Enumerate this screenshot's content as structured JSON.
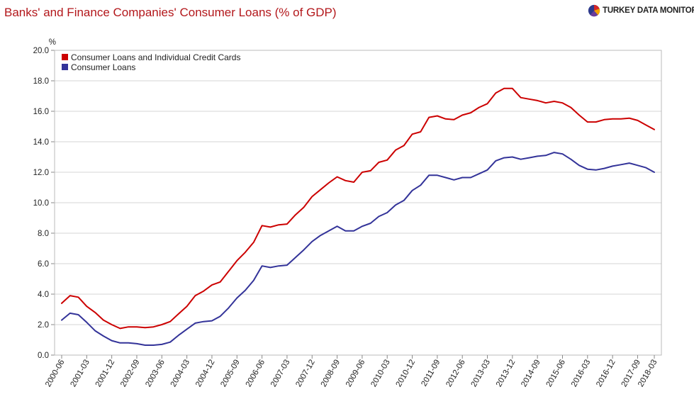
{
  "header": {
    "title": "Banks' and Finance Companies' Consumer Loans (% of GDP)",
    "brand": "TURKEY DATA MONITOR",
    "brand_logo_icon": "pie-logo-icon"
  },
  "chart_data": {
    "type": "line",
    "title": "Banks' and Finance Companies' Consumer Loans (% of GDP)",
    "ylabel": "%",
    "xlabel": "",
    "ylim": [
      0,
      20
    ],
    "yticks": [
      "0.0",
      "2.0",
      "4.0",
      "6.0",
      "8.0",
      "10.0",
      "12.0",
      "14.0",
      "16.0",
      "18.0",
      "20.0"
    ],
    "grid": "horizontal",
    "legend_position": "top-left",
    "x": [
      "2000-06",
      "2000-09",
      "2000-12",
      "2001-03",
      "2001-06",
      "2001-09",
      "2001-12",
      "2002-03",
      "2002-06",
      "2002-09",
      "2002-12",
      "2003-03",
      "2003-06",
      "2003-09",
      "2003-12",
      "2004-03",
      "2004-06",
      "2004-09",
      "2004-12",
      "2005-03",
      "2005-06",
      "2005-09",
      "2005-12",
      "2006-03",
      "2006-06",
      "2006-09",
      "2006-12",
      "2007-03",
      "2007-06",
      "2007-09",
      "2007-12",
      "2008-03",
      "2008-06",
      "2008-09",
      "2008-12",
      "2009-03",
      "2009-06",
      "2009-09",
      "2009-12",
      "2010-03",
      "2010-06",
      "2010-09",
      "2010-12",
      "2011-03",
      "2011-06",
      "2011-09",
      "2011-12",
      "2012-03",
      "2012-06",
      "2012-09",
      "2012-12",
      "2013-03",
      "2013-06",
      "2013-09",
      "2013-12",
      "2014-03",
      "2014-06",
      "2014-09",
      "2014-12",
      "2015-03",
      "2015-06",
      "2015-09",
      "2015-12",
      "2016-03",
      "2016-06",
      "2016-09",
      "2016-12",
      "2017-03",
      "2017-06",
      "2017-09",
      "2017-12",
      "2018-03"
    ],
    "xtick_labels": [
      "2000-06",
      "2001-03",
      "2001-12",
      "2002-09",
      "2003-06",
      "2004-03",
      "2004-12",
      "2005-09",
      "2006-06",
      "2007-03",
      "2007-12",
      "2008-09",
      "2009-06",
      "2010-03",
      "2010-12",
      "2011-09",
      "2012-06",
      "2013-03",
      "2013-12",
      "2014-09",
      "2015-06",
      "2016-03",
      "2016-12",
      "2017-09",
      "2018-03"
    ],
    "series": [
      {
        "name": "Consumer Loans and Individual Credit Cards",
        "color": "#cc0000",
        "values": [
          3.4,
          3.9,
          3.8,
          3.2,
          2.8,
          2.3,
          2.0,
          1.75,
          1.85,
          1.85,
          1.8,
          1.85,
          2.0,
          2.2,
          2.7,
          3.2,
          3.9,
          4.2,
          4.6,
          4.8,
          5.5,
          6.2,
          6.75,
          7.4,
          8.5,
          8.4,
          8.55,
          8.6,
          9.2,
          9.7,
          10.4,
          10.85,
          11.3,
          11.7,
          11.45,
          11.35,
          12.0,
          12.1,
          12.65,
          12.8,
          13.45,
          13.75,
          14.5,
          14.65,
          15.6,
          15.7,
          15.5,
          15.45,
          15.75,
          15.9,
          16.25,
          16.5,
          17.2,
          17.5,
          17.5,
          16.9,
          16.8,
          16.7,
          16.55,
          16.65,
          16.55,
          16.25,
          15.75,
          15.3,
          15.3,
          15.45,
          15.5,
          15.5,
          15.55,
          15.4,
          15.1,
          14.8
        ]
      },
      {
        "name": "Consumer Loans",
        "color": "#333399",
        "values": [
          2.3,
          2.75,
          2.65,
          2.15,
          1.6,
          1.25,
          0.95,
          0.8,
          0.8,
          0.75,
          0.65,
          0.65,
          0.7,
          0.85,
          1.3,
          1.7,
          2.1,
          2.2,
          2.25,
          2.55,
          3.1,
          3.75,
          4.25,
          4.9,
          5.85,
          5.75,
          5.85,
          5.9,
          6.4,
          6.9,
          7.45,
          7.85,
          8.15,
          8.45,
          8.15,
          8.15,
          8.45,
          8.65,
          9.1,
          9.35,
          9.85,
          10.15,
          10.8,
          11.15,
          11.8,
          11.8,
          11.65,
          11.5,
          11.65,
          11.65,
          11.9,
          12.15,
          12.75,
          12.95,
          13.0,
          12.85,
          12.95,
          13.05,
          13.1,
          13.3,
          13.2,
          12.85,
          12.45,
          12.2,
          12.15,
          12.25,
          12.4,
          12.5,
          12.6,
          12.45,
          12.3,
          12.0
        ]
      }
    ]
  }
}
